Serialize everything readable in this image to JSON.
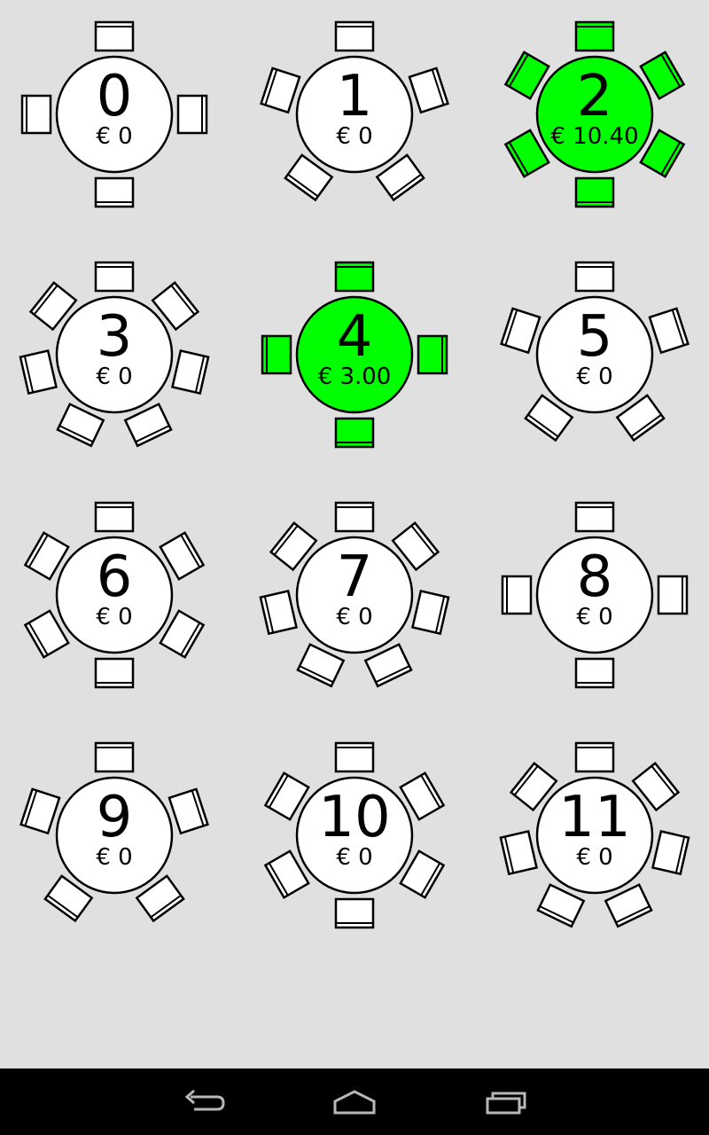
{
  "colors": {
    "background": "#e0e0e0",
    "occupied": "#00ff00",
    "free": "#ffffff",
    "stroke": "#000000",
    "navbar": "#000000",
    "nav_icon": "#b8b8b8"
  },
  "tables": [
    {
      "number": "0",
      "amount": "€ 0",
      "seats": 4,
      "occupied": false
    },
    {
      "number": "1",
      "amount": "€ 0",
      "seats": 5,
      "occupied": false
    },
    {
      "number": "2",
      "amount": "€ 10.40",
      "seats": 6,
      "occupied": true
    },
    {
      "number": "3",
      "amount": "€ 0",
      "seats": 7,
      "occupied": false
    },
    {
      "number": "4",
      "amount": "€ 3.00",
      "seats": 4,
      "occupied": true
    },
    {
      "number": "5",
      "amount": "€ 0",
      "seats": 5,
      "occupied": false
    },
    {
      "number": "6",
      "amount": "€ 0",
      "seats": 6,
      "occupied": false
    },
    {
      "number": "7",
      "amount": "€ 0",
      "seats": 7,
      "occupied": false
    },
    {
      "number": "8",
      "amount": "€ 0",
      "seats": 4,
      "occupied": false
    },
    {
      "number": "9",
      "amount": "€ 0",
      "seats": 5,
      "occupied": false
    },
    {
      "number": "10",
      "amount": "€ 0",
      "seats": 6,
      "occupied": false
    },
    {
      "number": "11",
      "amount": "€ 0",
      "seats": 7,
      "occupied": false
    }
  ],
  "navbar": {
    "icons": [
      "back-icon",
      "home-icon",
      "recent-apps-icon"
    ]
  }
}
